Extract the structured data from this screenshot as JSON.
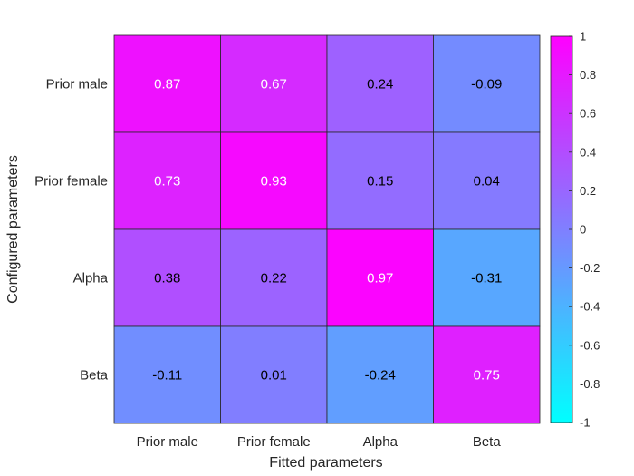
{
  "chart_data": {
    "type": "heatmap",
    "xlabel": "Fitted parameters",
    "ylabel": "Configured parameters",
    "x_categories": [
      "Prior male",
      "Prior female",
      "Alpha",
      "Beta"
    ],
    "y_categories": [
      "Prior male",
      "Prior female",
      "Alpha",
      "Beta"
    ],
    "values": [
      [
        0.87,
        0.67,
        0.24,
        -0.09
      ],
      [
        0.73,
        0.93,
        0.15,
        0.04
      ],
      [
        0.38,
        0.22,
        0.97,
        -0.31
      ],
      [
        -0.11,
        0.01,
        -0.24,
        0.75
      ]
    ],
    "value_labels": [
      [
        "0.87",
        "0.67",
        "0.24",
        "-0.09"
      ],
      [
        "0.73",
        "0.93",
        "0.15",
        "0.04"
      ],
      [
        "0.38",
        "0.22",
        "0.97",
        "-0.31"
      ],
      [
        "-0.11",
        "0.01",
        "-0.24",
        "0.75"
      ]
    ],
    "colormap": "cool",
    "color_low": "#00ffff",
    "color_high": "#ff00ff",
    "clim": [
      -1,
      1
    ],
    "colorbar_ticks": [
      1,
      0.8,
      0.6,
      0.4,
      0.2,
      0,
      -0.2,
      -0.4,
      -0.6,
      -0.8,
      -1
    ],
    "colorbar_tick_labels": [
      "1",
      "0.8",
      "0.6",
      "0.4",
      "0.2",
      "0",
      "-0.2",
      "-0.4",
      "-0.6",
      "-0.8",
      "-1"
    ],
    "colorbar_position": "right",
    "grid": false
  }
}
